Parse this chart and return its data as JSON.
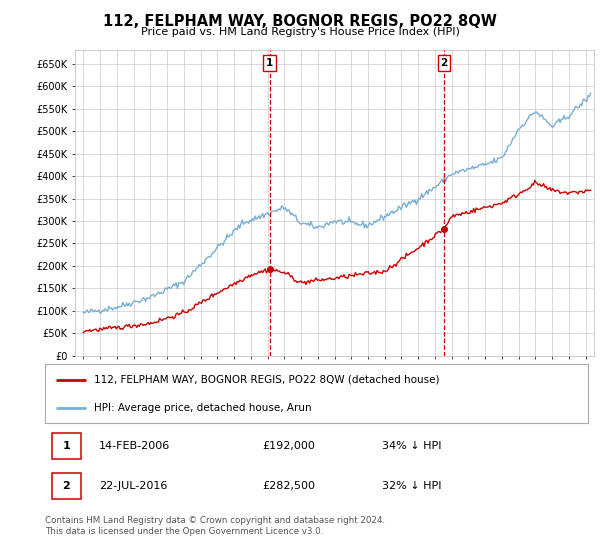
{
  "title": "112, FELPHAM WAY, BOGNOR REGIS, PO22 8QW",
  "subtitle": "Price paid vs. HM Land Registry's House Price Index (HPI)",
  "ylim": [
    0,
    680000
  ],
  "yticks": [
    0,
    50000,
    100000,
    150000,
    200000,
    250000,
    300000,
    350000,
    400000,
    450000,
    500000,
    550000,
    600000,
    650000
  ],
  "ytick_labels": [
    "£0",
    "£50K",
    "£100K",
    "£150K",
    "£200K",
    "£250K",
    "£300K",
    "£350K",
    "£400K",
    "£450K",
    "£500K",
    "£550K",
    "£600K",
    "£650K"
  ],
  "xlim_start": 1994.5,
  "xlim_end": 2025.5,
  "purchase1_x": 2006.12,
  "purchase1_y": 192000,
  "purchase2_x": 2016.55,
  "purchase2_y": 282500,
  "legend_line1": "112, FELPHAM WAY, BOGNOR REGIS, PO22 8QW (detached house)",
  "legend_line2": "HPI: Average price, detached house, Arun",
  "table_rows": [
    [
      "1",
      "14-FEB-2006",
      "£192,000",
      "34% ↓ HPI"
    ],
    [
      "2",
      "22-JUL-2016",
      "£282,500",
      "32% ↓ HPI"
    ]
  ],
  "footer": "Contains HM Land Registry data © Crown copyright and database right 2024.\nThis data is licensed under the Open Government Licence v3.0.",
  "red_color": "#cc0000",
  "blue_color": "#7aafd4",
  "grid_color": "#cccccc",
  "background_color": "#ffffff"
}
